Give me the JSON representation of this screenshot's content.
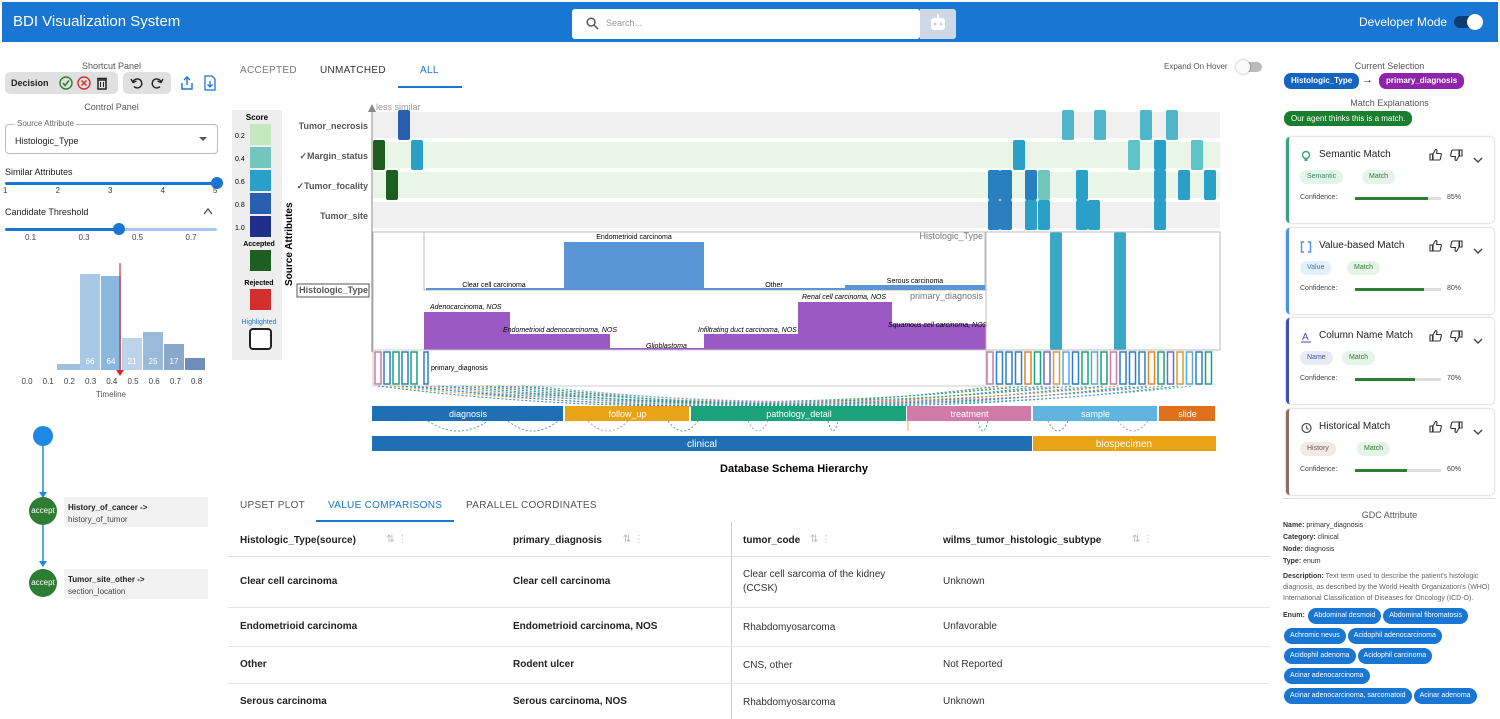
{
  "appbar": {
    "title": "BDI Visualization System",
    "search_placeholder": "Search...",
    "dev_mode": "Developer Mode"
  },
  "left": {
    "shortcut_panel": "Shortcut Panel",
    "decision": "Decision",
    "control_panel": "Control Panel",
    "source_attribute_label": "Source Attribute",
    "source_attribute_value": "Histologic_Type",
    "similar_attributes": "Similar Attributes",
    "similar_ticks": [
      "1",
      "2",
      "3",
      "4",
      "5"
    ],
    "similar_value": 5,
    "candidate_threshold": "Candidate Threshold",
    "threshold_ticks": [
      "0.1",
      "0.3",
      "0.5",
      "0.7"
    ],
    "threshold_value": 0.42,
    "hist_counts": [
      "66",
      "64",
      "21",
      "25",
      "17"
    ],
    "hist_ticks": [
      "0.0",
      "0.1",
      "0.2",
      "0.3",
      "0.4",
      "0.5",
      "0.6",
      "0.7",
      "0.8"
    ],
    "timeline": "Timeline",
    "timeline_items": [
      {
        "badge": "accept",
        "from": "History_of_cancer ->",
        "to": "history_of_tumor"
      },
      {
        "badge": "accept",
        "from": "Tumor_site_other ->",
        "to": "section_location"
      }
    ]
  },
  "center": {
    "tabs": [
      "ACCEPTED",
      "UNMATCHED",
      "ALL"
    ],
    "active_tab": "ALL",
    "expand_on_hover": "Expand On Hover",
    "legend": {
      "score": "Score",
      "levels": [
        "0.2",
        "0.4",
        "0.6",
        "0.8",
        "1.0"
      ],
      "accepted": "Accepted",
      "rejected": "Rejected",
      "highlighted": "Highlighted"
    },
    "less_similar": "less similar",
    "y_axis": "Source Attributes",
    "rows": [
      "Tumor_necrosis",
      "✓Margin_status",
      "✓Tumor_focality",
      "Tumor_site",
      "Histologic_Type"
    ],
    "source_box_label": "Histologic_Type",
    "target_box_label": "primary_diagnosis",
    "inner_label": "primary_diagnosis",
    "source_values": [
      "Endometrioid carcinoma",
      "Clear cell carcinoma",
      "Other",
      "Serous carcinoma"
    ],
    "target_values": [
      "Adenocarcinoma, NOS",
      "Endometrioid adenocarcinoma, NOS",
      "Glioblastoma",
      "Infiltrating duct carcinoma, NOS",
      "Renal cell carcinoma, NOS",
      "Squamous cell carcinoma, NOS"
    ],
    "categories": [
      "diagnosis",
      "follow_up",
      "pathology_detail",
      "treatment",
      "sample",
      "slide"
    ],
    "groups": [
      "clinical",
      "biospecimen"
    ],
    "x_axis": "Database Schema Hierarchy",
    "bottom_tabs": [
      "UPSET PLOT",
      "VALUE COMPARISONS",
      "PARALLEL COORDINATES"
    ],
    "active_bottom_tab": "VALUE COMPARISONS",
    "table": {
      "headers": [
        "Histologic_Type(source)",
        "primary_diagnosis",
        "tumor_code",
        "wilms_tumor_histologic_subtype"
      ],
      "rows": [
        [
          "Clear cell carcinoma",
          "Clear cell carcinoma",
          "Clear cell sarcoma of the kidney (CCSK)",
          "Unknown"
        ],
        [
          "Endometrioid carcinoma",
          "Endometrioid carcinoma, NOS",
          "Rhabdomyosarcoma",
          "Unfavorable"
        ],
        [
          "Other",
          "Rodent ulcer",
          "CNS, other",
          "Not Reported"
        ],
        [
          "Serous carcinoma",
          "Serous carcinoma, NOS",
          "Rhabdomyosarcoma",
          "Unknown"
        ]
      ]
    }
  },
  "right": {
    "current_selection": "Current Selection",
    "source_chip": "Histologic_Type",
    "arrow": "→",
    "target_chip": "primary_diagnosis",
    "match_explanations": "Match Explanations",
    "agent_chip": "Our agent thinks this is a match.",
    "confidence_label": "Confidence:",
    "cards": [
      {
        "title": "Semantic Match",
        "tag": "Semantic",
        "match": "Match",
        "confidence": 0.85,
        "pct": "85%",
        "accent": "#3aa37b",
        "tagbg": "#e3f4ec",
        "tagfg": "#3a8f6a"
      },
      {
        "title": "Value-based Match",
        "tag": "Value",
        "match": "Match",
        "confidence": 0.8,
        "pct": "80%",
        "accent": "#4a90e2",
        "tagbg": "#e3effc",
        "tagfg": "#3c7cc7"
      },
      {
        "title": "Column Name Match",
        "tag": "Name",
        "match": "Match",
        "confidence": 0.7,
        "pct": "70%",
        "accent": "#3f51b5",
        "tagbg": "#e8eaf6",
        "tagfg": "#3f51b5"
      },
      {
        "title": "Historical Match",
        "tag": "History",
        "match": "Match",
        "confidence": 0.6,
        "pct": "60%",
        "accent": "#8d6e63",
        "tagbg": "#efebe9",
        "tagfg": "#795548"
      }
    ],
    "gdc": {
      "title": "GDC Attribute",
      "name_label": "Name:",
      "name": "primary_diagnosis",
      "category_label": "Category:",
      "category": "clinical",
      "node_label": "Node:",
      "node": "diagnosis",
      "type_label": "Type:",
      "type": "enum",
      "description_label": "Description:",
      "description": "Text term used to describe the patient's histologic diagnosis, as described by the World Health Organization's (WHO) International Classification of Diseases for Oncology (ICD-O).",
      "enum_label": "Enum:",
      "enums": [
        "Abdominal desmoid",
        "Abdominal fibromatosis",
        "Achromic nevus",
        "Acidophil adenocarcinoma",
        "Acidophil adenoma",
        "Acidophil carcinoma",
        "Acinar adenocarcinoma",
        "Acinar adenocarcinoma, sarcomatoid",
        "Acinar adenoma"
      ]
    }
  }
}
